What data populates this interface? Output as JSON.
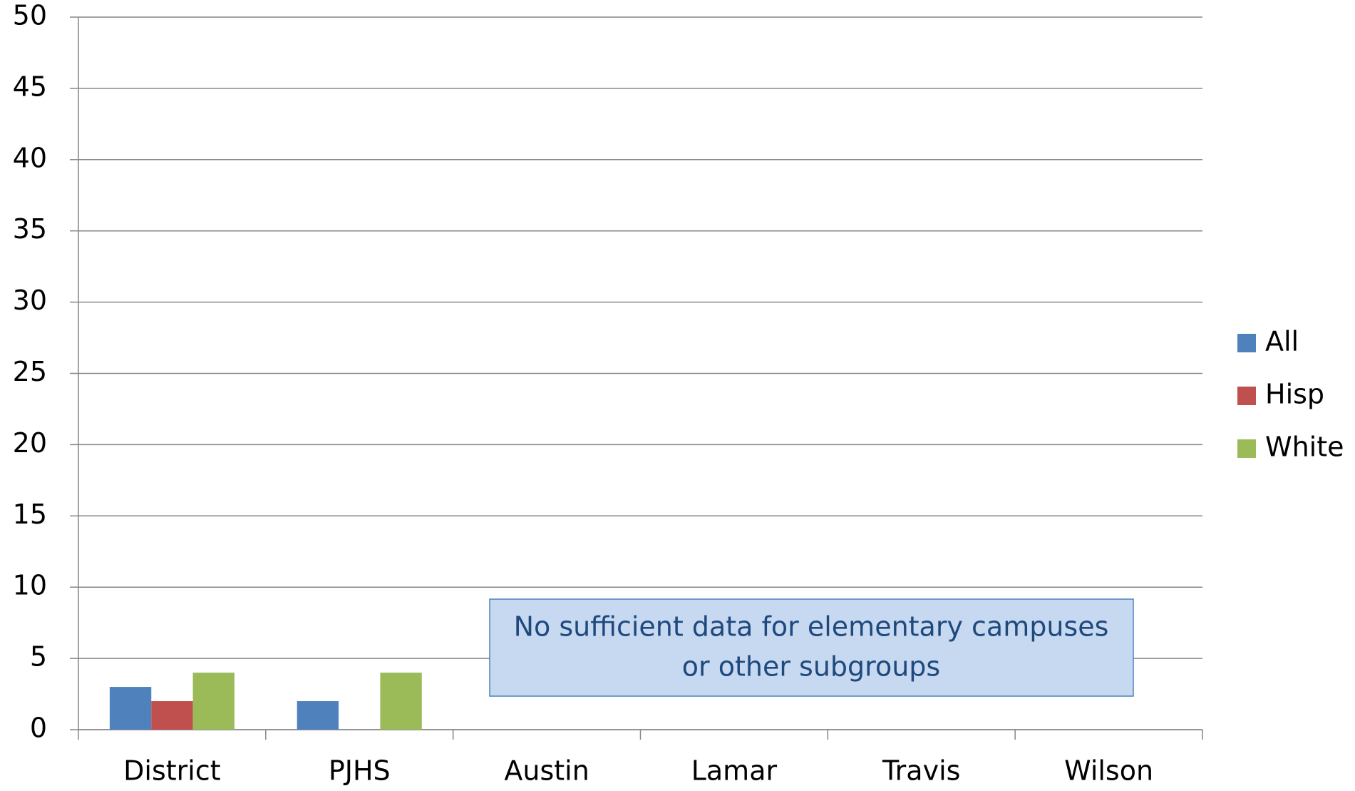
{
  "chart_data": {
    "type": "bar",
    "categories": [
      "District",
      "PJHS",
      "Austin",
      "Lamar",
      "Travis",
      "Wilson"
    ],
    "series": [
      {
        "name": "All",
        "color": "#4f81bd",
        "values": [
          3,
          2,
          null,
          null,
          null,
          null
        ]
      },
      {
        "name": "Hisp",
        "color": "#c0504d",
        "values": [
          2,
          null,
          null,
          null,
          null,
          null
        ]
      },
      {
        "name": "White",
        "color": "#9bbb59",
        "values": [
          4,
          4,
          null,
          null,
          null,
          null
        ]
      }
    ],
    "ylim": [
      0,
      50
    ],
    "yticks": [
      0,
      5,
      10,
      15,
      20,
      25,
      30,
      35,
      40,
      45,
      50
    ],
    "grid": true,
    "legend": "right",
    "annotation": [
      "No sufficient data for elementary campuses",
      "or other subgroups"
    ]
  }
}
